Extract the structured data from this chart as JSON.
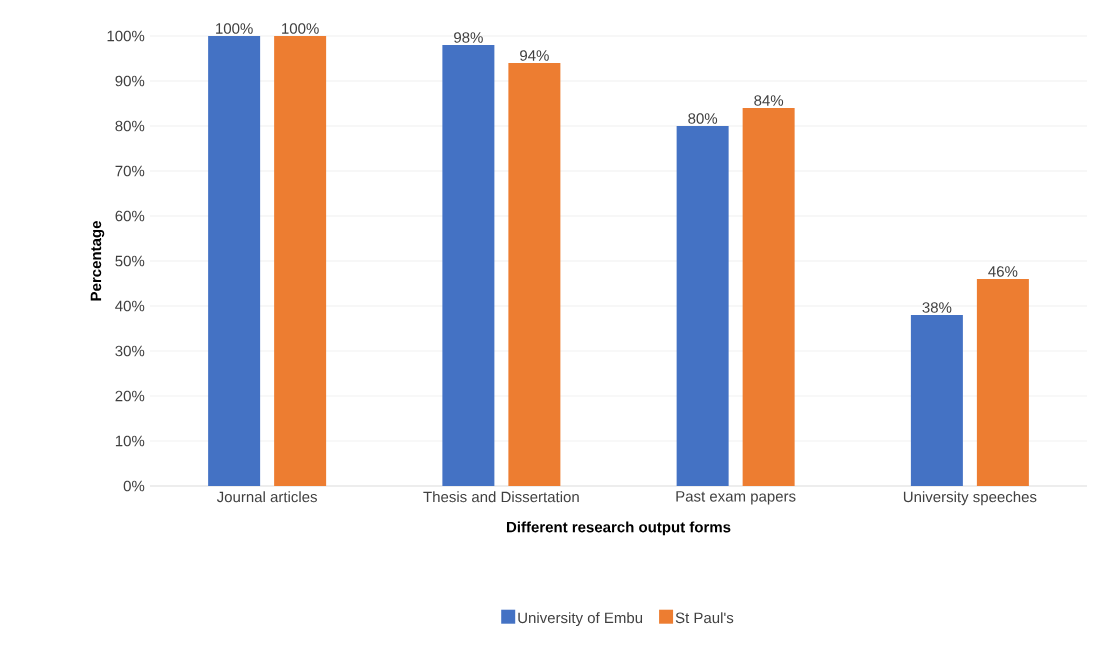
{
  "chart_data": {
    "type": "bar",
    "xlabel": "Different research output forms",
    "ylabel": "Percentage",
    "categories": [
      "Journal articles",
      "Thesis and Dissertation",
      "Past exam papers",
      "University speeches"
    ],
    "series": [
      {
        "name": "University of Embu",
        "color": "#4472c4",
        "values": [
          100,
          98,
          80,
          38
        ],
        "value_labels": [
          "100%",
          "98%",
          "80%",
          "38%"
        ]
      },
      {
        "name": "St Paul's",
        "color": "#ed7d31",
        "values": [
          100,
          94,
          84,
          46
        ],
        "value_labels": [
          "100%",
          "94%",
          "84%",
          "46%"
        ]
      }
    ],
    "ylim": [
      0,
      100
    ],
    "yticks": [
      {
        "value": 0,
        "label": "0%"
      },
      {
        "value": 10,
        "label": "10%"
      },
      {
        "value": 20,
        "label": "20%"
      },
      {
        "value": 30,
        "label": "30%"
      },
      {
        "value": 40,
        "label": "40%"
      },
      {
        "value": 50,
        "label": "50%"
      },
      {
        "value": 60,
        "label": "60%"
      },
      {
        "value": 70,
        "label": "70%"
      },
      {
        "value": 80,
        "label": "80%"
      },
      {
        "value": 90,
        "label": "90%"
      },
      {
        "value": 100,
        "label": "100%"
      }
    ],
    "grid": "y",
    "legend": "bottom"
  }
}
